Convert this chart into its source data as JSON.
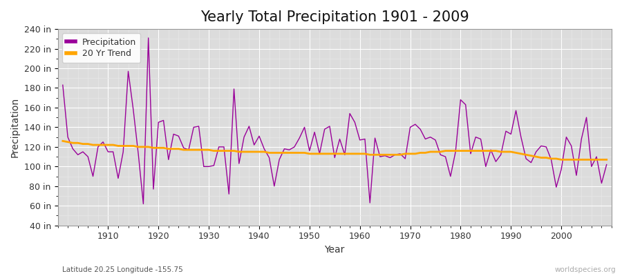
{
  "title": "Yearly Total Precipitation 1901 - 2009",
  "xlabel": "Year",
  "ylabel": "Precipitation",
  "subtitle": "Latitude 20.25 Longitude -155.75",
  "watermark": "worldspecies.org",
  "ylim": [
    40,
    240
  ],
  "yticks": [
    40,
    60,
    80,
    100,
    120,
    140,
    160,
    180,
    200,
    220,
    240
  ],
  "years": [
    1901,
    1902,
    1903,
    1904,
    1905,
    1906,
    1907,
    1908,
    1909,
    1910,
    1911,
    1912,
    1913,
    1914,
    1915,
    1916,
    1917,
    1918,
    1919,
    1920,
    1921,
    1922,
    1923,
    1924,
    1925,
    1926,
    1927,
    1928,
    1929,
    1930,
    1931,
    1932,
    1933,
    1934,
    1935,
    1936,
    1937,
    1938,
    1939,
    1940,
    1941,
    1942,
    1943,
    1944,
    1945,
    1946,
    1947,
    1948,
    1949,
    1950,
    1951,
    1952,
    1953,
    1954,
    1955,
    1956,
    1957,
    1958,
    1959,
    1960,
    1961,
    1962,
    1963,
    1964,
    1965,
    1966,
    1967,
    1968,
    1969,
    1970,
    1971,
    1972,
    1973,
    1974,
    1975,
    1976,
    1977,
    1978,
    1979,
    1980,
    1981,
    1982,
    1983,
    1984,
    1985,
    1986,
    1987,
    1988,
    1989,
    1990,
    1991,
    1992,
    1993,
    1994,
    1995,
    1996,
    1997,
    1998,
    1999,
    2000,
    2001,
    2002,
    2003,
    2004,
    2005,
    2006,
    2007,
    2008,
    2009
  ],
  "precip": [
    183,
    130,
    118,
    112,
    115,
    110,
    90,
    120,
    125,
    115,
    115,
    88,
    115,
    197,
    158,
    113,
    62,
    231,
    77,
    145,
    147,
    107,
    133,
    131,
    119,
    117,
    140,
    141,
    100,
    100,
    101,
    120,
    120,
    72,
    179,
    103,
    130,
    141,
    122,
    131,
    118,
    109,
    80,
    107,
    118,
    117,
    120,
    129,
    140,
    116,
    135,
    113,
    138,
    141,
    109,
    128,
    112,
    154,
    145,
    127,
    128,
    63,
    129,
    110,
    111,
    109,
    112,
    113,
    108,
    140,
    143,
    138,
    128,
    130,
    127,
    112,
    110,
    90,
    115,
    168,
    163,
    113,
    130,
    128,
    100,
    117,
    105,
    112,
    136,
    133,
    157,
    130,
    108,
    104,
    115,
    121,
    120,
    107,
    79,
    97,
    130,
    121,
    91,
    128,
    150,
    100,
    110,
    83,
    102
  ],
  "trend": [
    126,
    125,
    124,
    124,
    123,
    123,
    122,
    122,
    122,
    122,
    122,
    121,
    121,
    121,
    121,
    120,
    120,
    120,
    119,
    119,
    119,
    118,
    118,
    118,
    117,
    117,
    117,
    117,
    117,
    117,
    116,
    116,
    116,
    116,
    116,
    115,
    115,
    115,
    115,
    115,
    115,
    114,
    114,
    114,
    114,
    114,
    114,
    114,
    114,
    113,
    113,
    113,
    113,
    113,
    113,
    113,
    113,
    113,
    113,
    113,
    113,
    112,
    112,
    112,
    112,
    112,
    112,
    112,
    113,
    113,
    113,
    114,
    114,
    115,
    115,
    115,
    116,
    116,
    116,
    116,
    116,
    116,
    116,
    116,
    116,
    116,
    116,
    115,
    115,
    115,
    114,
    113,
    112,
    111,
    110,
    109,
    109,
    108,
    108,
    107,
    107,
    107,
    107,
    107,
    107,
    107,
    107,
    107,
    107
  ],
  "precip_color": "#990099",
  "trend_color": "#FFA500",
  "bg_color": "#ffffff",
  "plot_bg_color": "#dcdcdc",
  "grid_major_color": "#ffffff",
  "grid_minor_color": "#e8e8e8",
  "title_fontsize": 15,
  "label_fontsize": 10,
  "tick_fontsize": 9,
  "legend_fontsize": 9,
  "spine_color": "#999999"
}
